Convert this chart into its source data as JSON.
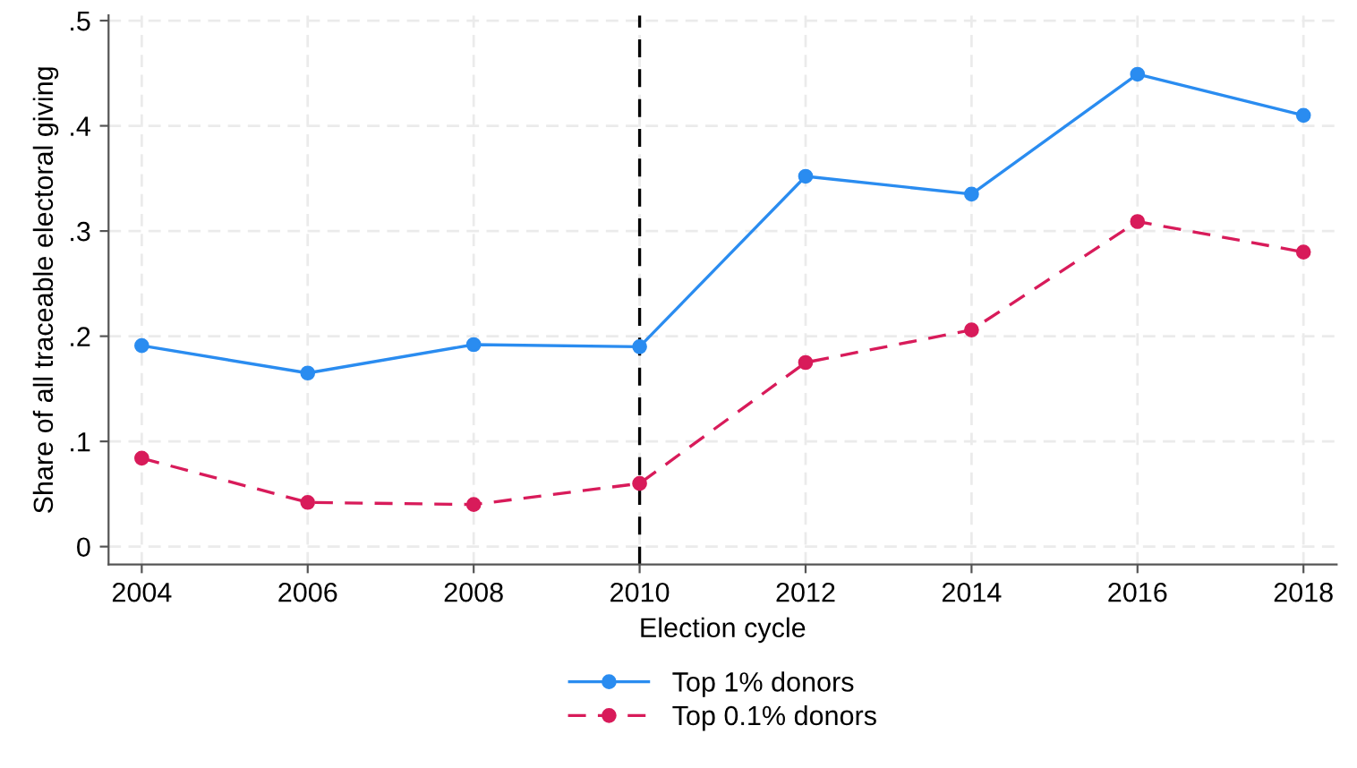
{
  "chart_data": {
    "type": "line",
    "xlabel": "Election cycle",
    "ylabel": "Share of all traceable electoral giving",
    "x": [
      2004,
      2006,
      2008,
      2010,
      2012,
      2014,
      2016,
      2018
    ],
    "series": [
      {
        "name": "Top 1% donors",
        "color": "#2a8cf0",
        "values": [
          0.191,
          0.165,
          0.192,
          0.19,
          0.352,
          0.335,
          0.449,
          0.41
        ],
        "line_style": "solid"
      },
      {
        "name": "Top 0.1% donors",
        "color": "#d81b5a",
        "values": [
          0.084,
          0.042,
          0.04,
          0.06,
          0.175,
          0.206,
          0.309,
          0.28
        ],
        "line_style": "dashed"
      }
    ],
    "xlim": [
      2003.6,
      2018.4
    ],
    "xticks": [
      2004,
      2006,
      2008,
      2010,
      2012,
      2014,
      2016,
      2018
    ],
    "ylim": [
      -0.017,
      0.505
    ],
    "yticks": [
      {
        "value": 0,
        "label": "0"
      },
      {
        "value": 0.1,
        "label": ".1"
      },
      {
        "value": 0.2,
        "label": ".2"
      },
      {
        "value": 0.3,
        "label": ".3"
      },
      {
        "value": 0.4,
        "label": ".4"
      },
      {
        "value": 0.5,
        "label": ".5"
      }
    ],
    "ref_lines": [
      {
        "axis": "x",
        "value": 2010,
        "label": null,
        "color": "#000000",
        "line_style": "dashed"
      }
    ],
    "grid": true,
    "legend": "bottom",
    "marker": "circle"
  }
}
